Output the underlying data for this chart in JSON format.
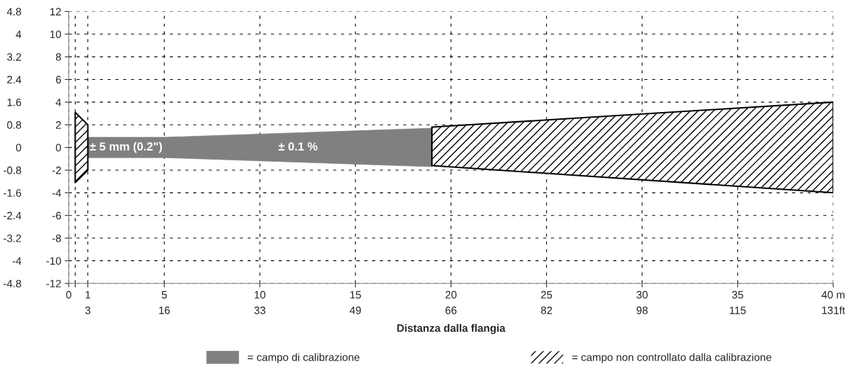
{
  "chart_data": {
    "type": "area",
    "xlabel": "Distanza dalla flangia",
    "xlim": [
      0,
      40
    ],
    "xticks": [
      0,
      {
        "value": 0.34,
        "label": null
      },
      1,
      5,
      10,
      15,
      20,
      25,
      30,
      35,
      {
        "value": 40,
        "label": "40 m"
      }
    ],
    "x2lim": [
      0,
      131.2
    ],
    "x2ticks": [
      {
        "value": 3.28,
        "label": "3"
      },
      {
        "value": 16.4,
        "label": "16"
      },
      {
        "value": 32.8,
        "label": "33"
      },
      {
        "value": 49.2,
        "label": "49"
      },
      {
        "value": 65.6,
        "label": "66"
      },
      82,
      {
        "value": 98.4,
        "label": "98"
      },
      {
        "value": 114.8,
        "label": "115"
      },
      {
        "value": 131.2,
        "label": "131ft"
      }
    ],
    "ylim": [
      -12,
      12
    ],
    "yticks": [
      -12,
      -10,
      -8,
      -6,
      -4,
      -2,
      0,
      2,
      4,
      6,
      8,
      10,
      12
    ],
    "y2lim": [
      -4.8,
      4.8
    ],
    "y2ticks": [
      -4.8,
      -4,
      -3.2,
      -2.4,
      -1.6,
      -0.8,
      0,
      0.8,
      1.6,
      2.4,
      3.2,
      4,
      4.8
    ],
    "grid": true,
    "legend": "bottom",
    "series": [
      {
        "name": "= campo di calibrazione",
        "color": "#808080",
        "x": [
          1,
          5,
          19
        ],
        "values": [
          0.9,
          0.9,
          1.7
        ]
      },
      {
        "color": "#808080",
        "x": [
          1,
          5,
          19
        ],
        "values": [
          -0.9,
          -0.9,
          -1.7
        ]
      },
      {
        "name": "= campo non controllato dalla calibrazione",
        "color": "#000000",
        "line_style": "solid",
        "x": [
          0.34,
          1
        ],
        "values": [
          3.1,
          2
        ]
      },
      {
        "color": "#000000",
        "line_style": "solid",
        "x": [
          0.34,
          1
        ],
        "values": [
          -3.1,
          -2
        ]
      },
      {
        "color": "#000000",
        "line_style": "solid",
        "x": [
          19,
          40
        ],
        "values": [
          1.8,
          4
        ]
      },
      {
        "color": "#000000",
        "line_style": "solid",
        "x": [
          19,
          40
        ],
        "values": [
          -1.6,
          -4
        ]
      }
    ],
    "annotations": [
      "± 5 mm (0.2\")",
      "± 0.1 %"
    ]
  }
}
